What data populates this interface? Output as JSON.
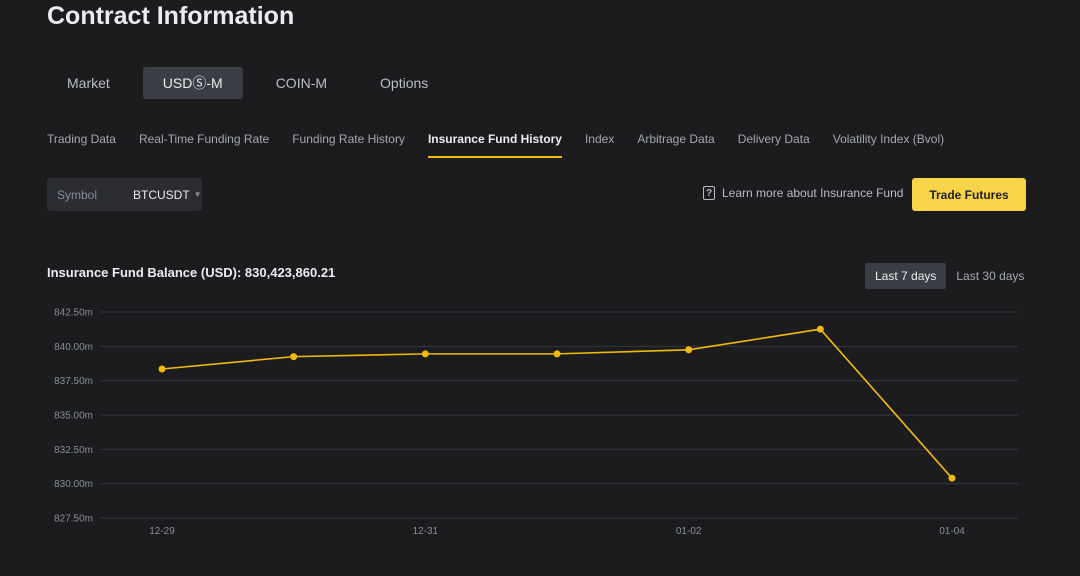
{
  "page": {
    "title": "Contract Information"
  },
  "top_tabs": [
    {
      "label": "Market",
      "active": false
    },
    {
      "label": "USDⓈ-M",
      "active": true
    },
    {
      "label": "COIN-M",
      "active": false
    },
    {
      "label": "Options",
      "active": false
    }
  ],
  "subnav": [
    {
      "label": "Trading Data",
      "active": false
    },
    {
      "label": "Real-Time Funding Rate",
      "active": false
    },
    {
      "label": "Funding Rate History",
      "active": false
    },
    {
      "label": "Insurance Fund History",
      "active": true
    },
    {
      "label": "Index",
      "active": false
    },
    {
      "label": "Arbitrage Data",
      "active": false
    },
    {
      "label": "Delivery Data",
      "active": false
    },
    {
      "label": "Volatility Index (Bvol)",
      "active": false
    }
  ],
  "symbol": {
    "label": "Symbol",
    "value": "BTCUSDT"
  },
  "learn_more": {
    "label": "Learn more about Insurance Fund",
    "icon": "question-icon"
  },
  "trade_button": {
    "label": "Trade Futures"
  },
  "balance": {
    "label": "Insurance Fund Balance (USD): 830,423,860.21"
  },
  "range_tabs": [
    {
      "label": "Last 7 days",
      "active": true
    },
    {
      "label": "Last 30 days",
      "active": false
    }
  ],
  "colors": {
    "accent": "#f0b90b",
    "line": "#f0b90b",
    "button": "#f7d34a"
  },
  "chart_data": {
    "type": "line",
    "x": [
      "12-29",
      "12-30",
      "12-31",
      "01-01",
      "01-02",
      "01-03",
      "01-04"
    ],
    "xtick_labels": [
      "12-29",
      "12-31",
      "01-02",
      "01-04"
    ],
    "y": [
      838.35,
      839.25,
      839.45,
      839.45,
      839.75,
      841.25,
      830.4
    ],
    "ytick_labels": [
      "842.50m",
      "840.00m",
      "837.50m",
      "835.00m",
      "832.50m",
      "830.00m",
      "827.50m"
    ],
    "yticks": [
      842.5,
      840.0,
      837.5,
      835.0,
      832.5,
      830.0,
      827.5
    ],
    "ylim": [
      827.5,
      842.5
    ],
    "unit": "m",
    "grid": true
  }
}
